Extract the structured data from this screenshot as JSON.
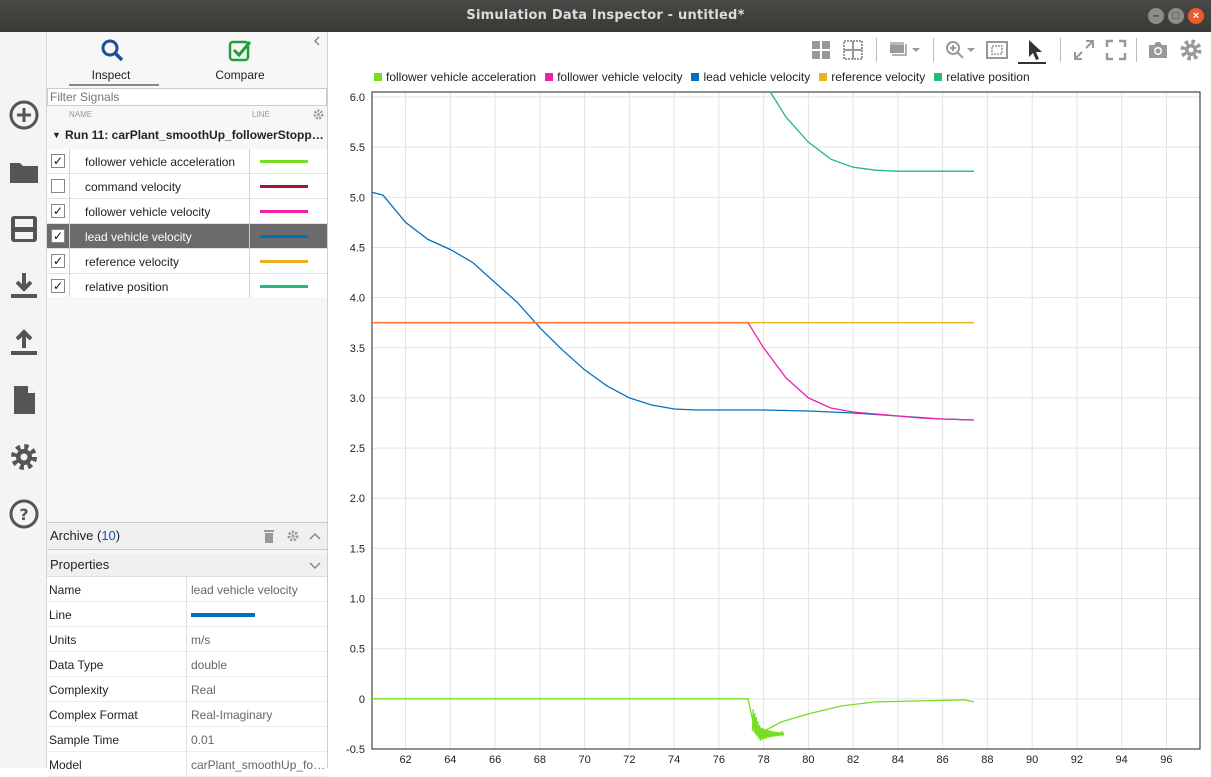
{
  "window": {
    "title": "Simulation Data Inspector - untitled*"
  },
  "tabs": [
    {
      "label": "Inspect",
      "active": true
    },
    {
      "label": "Compare",
      "active": false
    }
  ],
  "filter": {
    "placeholder": "Filter Signals"
  },
  "columns": {
    "name": "NAME",
    "line": "LINE"
  },
  "run": {
    "label": "Run 11: carPlant_smoothUp_followerStopp…"
  },
  "signals": [
    {
      "name": "follower vehicle acceleration",
      "checked": true,
      "color": "#77dd22",
      "selected": false
    },
    {
      "name": "command velocity",
      "checked": false,
      "color": "#a2142f",
      "selected": false
    },
    {
      "name": "follower vehicle velocity",
      "checked": true,
      "color": "#ee22aa",
      "selected": false
    },
    {
      "name": "lead vehicle velocity",
      "checked": true,
      "color": "#0072bd",
      "selected": true
    },
    {
      "name": "reference velocity",
      "checked": true,
      "color": "#edb120",
      "selected": false
    },
    {
      "name": "relative position",
      "checked": true,
      "color": "#22bb77",
      "selected": false
    }
  ],
  "archive": {
    "label": "Archive",
    "count": "10"
  },
  "properties": {
    "header": "Properties",
    "rows": [
      {
        "key": "Name",
        "value": "lead vehicle velocity"
      },
      {
        "key": "Line",
        "value": ""
      },
      {
        "key": "Units",
        "value": "m/s"
      },
      {
        "key": "Data Type",
        "value": "double"
      },
      {
        "key": "Complexity",
        "value": "Real"
      },
      {
        "key": "Complex Format",
        "value": "Real-Imaginary"
      },
      {
        "key": "Sample Time",
        "value": "0.01"
      },
      {
        "key": "Model",
        "value": "carPlant_smoothUp_fo…"
      }
    ],
    "line_color": "#0072bd"
  },
  "chart_data": {
    "type": "line",
    "xlim": [
      60.5,
      97.5
    ],
    "ylim": [
      -0.5,
      6.05
    ],
    "xticks": [
      62,
      64,
      66,
      68,
      70,
      72,
      74,
      76,
      78,
      80,
      82,
      84,
      86,
      88,
      90,
      92,
      94,
      96
    ],
    "yticks": [
      -0.5,
      0,
      0.5,
      1.0,
      1.5,
      2.0,
      2.5,
      3.0,
      3.5,
      4.0,
      4.5,
      5.0,
      5.5,
      6.0
    ],
    "ytick_labels": [
      "-0.5",
      "0",
      "0.5",
      "1.0",
      "1.5",
      "2.0",
      "2.5",
      "3.0",
      "3.5",
      "4.0",
      "4.5",
      "5.0",
      "5.5",
      "6.0"
    ],
    "grid": true,
    "legend_position": "top",
    "series": [
      {
        "name": "follower vehicle acceleration",
        "color": "#77dd22",
        "x": [
          60.5,
          77.3,
          77.5,
          77.8,
          78.2,
          78.8,
          80,
          81.5,
          83,
          85,
          87,
          87.4
        ],
        "y": [
          0,
          0,
          -0.2,
          -0.35,
          -0.3,
          -0.23,
          -0.15,
          -0.07,
          -0.03,
          -0.02,
          -0.01,
          -0.03
        ]
      },
      {
        "name": "follower vehicle velocity",
        "color": "#ee22aa",
        "x": [
          77.3,
          78,
          79,
          80,
          81,
          82,
          83,
          84,
          85,
          86,
          87.4
        ],
        "y": [
          3.75,
          3.5,
          3.2,
          3.0,
          2.9,
          2.86,
          2.84,
          2.82,
          2.8,
          2.79,
          2.78
        ]
      },
      {
        "name": "lead vehicle velocity",
        "color": "#0072bd",
        "x": [
          60.5,
          61,
          62,
          63,
          64,
          65,
          66,
          67,
          68,
          69,
          70,
          71,
          72,
          73,
          74,
          75,
          76,
          77,
          78,
          80,
          82,
          84,
          86,
          87.4
        ],
        "y": [
          5.05,
          5.02,
          4.75,
          4.58,
          4.48,
          4.35,
          4.15,
          3.95,
          3.7,
          3.48,
          3.28,
          3.12,
          3.0,
          2.93,
          2.89,
          2.88,
          2.88,
          2.88,
          2.88,
          2.87,
          2.85,
          2.82,
          2.79,
          2.78
        ]
      },
      {
        "name": "reference velocity",
        "color": "#edb120",
        "x": [
          60.5,
          87.4
        ],
        "y": [
          3.75,
          3.75
        ]
      },
      {
        "name": "relative position",
        "color": "#22bb77",
        "x": [
          78.3,
          79,
          80,
          81,
          82,
          83,
          84,
          85,
          86,
          87.4
        ],
        "y": [
          6.05,
          5.8,
          5.55,
          5.38,
          5.3,
          5.27,
          5.26,
          5.26,
          5.26,
          5.26
        ]
      }
    ],
    "command_velocity": {
      "color": "#ff7733",
      "x": [
        60.5,
        77.3
      ],
      "y": [
        3.75,
        3.75
      ]
    }
  }
}
